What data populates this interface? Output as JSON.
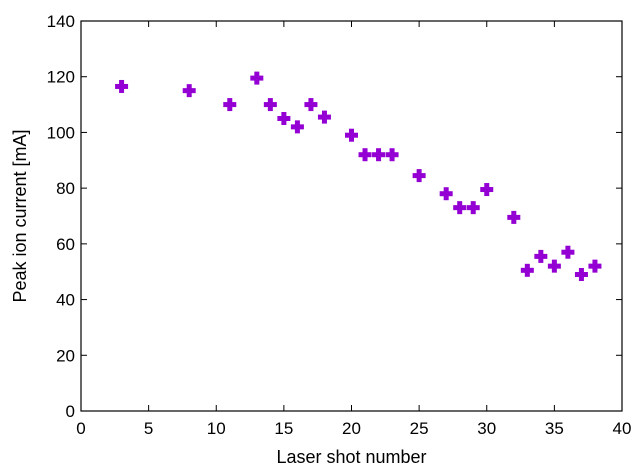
{
  "chart_data": {
    "type": "scatter",
    "title": "",
    "xlabel": "Laser shot number",
    "ylabel": "Peak ion current [mA]",
    "xlim": [
      0,
      40
    ],
    "ylim": [
      0,
      140
    ],
    "xticks": [
      0,
      5,
      10,
      15,
      20,
      25,
      30,
      35,
      40
    ],
    "yticks": [
      0,
      20,
      40,
      60,
      80,
      100,
      120,
      140
    ],
    "grid": false,
    "legend": "none",
    "marker": "plus",
    "color": "#9400D3",
    "points": [
      {
        "x": 3,
        "y": 116.5
      },
      {
        "x": 8,
        "y": 115
      },
      {
        "x": 11,
        "y": 110
      },
      {
        "x": 13,
        "y": 119.5
      },
      {
        "x": 14,
        "y": 110
      },
      {
        "x": 15,
        "y": 105
      },
      {
        "x": 16,
        "y": 102
      },
      {
        "x": 17,
        "y": 110
      },
      {
        "x": 18,
        "y": 105.5
      },
      {
        "x": 20,
        "y": 99
      },
      {
        "x": 21,
        "y": 92
      },
      {
        "x": 22,
        "y": 92
      },
      {
        "x": 23,
        "y": 92
      },
      {
        "x": 25,
        "y": 84.5
      },
      {
        "x": 27,
        "y": 78
      },
      {
        "x": 28,
        "y": 73
      },
      {
        "x": 29,
        "y": 73
      },
      {
        "x": 30,
        "y": 79.5
      },
      {
        "x": 32,
        "y": 69.5
      },
      {
        "x": 33,
        "y": 50.5
      },
      {
        "x": 34,
        "y": 55.5
      },
      {
        "x": 35,
        "y": 52
      },
      {
        "x": 36,
        "y": 57
      },
      {
        "x": 37,
        "y": 49
      },
      {
        "x": 38,
        "y": 52
      }
    ]
  }
}
